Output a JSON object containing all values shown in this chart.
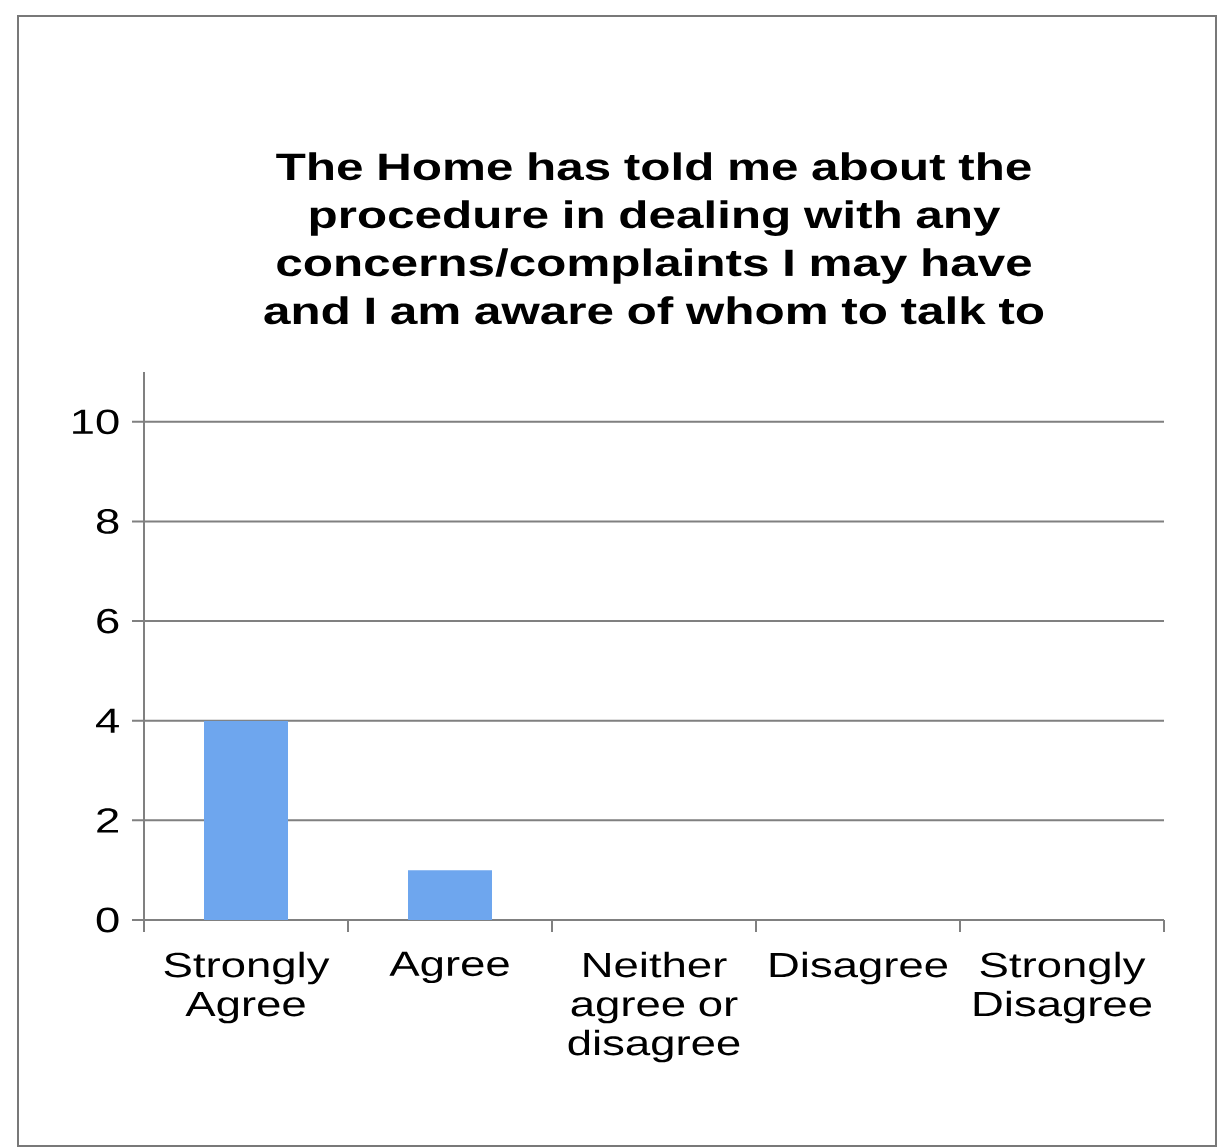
{
  "chart_data": {
    "type": "bar",
    "title": "The Home has told me about the procedure in dealing with any concerns/complaints I may have and I am aware of whom to talk to",
    "categories": [
      "Strongly Agree",
      "Agree",
      "Neither agree or disagree",
      "Disagree",
      "Strongly Disagree"
    ],
    "values": [
      4,
      1,
      0,
      0,
      0
    ],
    "color": "#6ea6ee",
    "ylim": [
      0,
      11
    ],
    "yticks": [
      0,
      2,
      4,
      6,
      8,
      10
    ],
    "grid": "y"
  }
}
